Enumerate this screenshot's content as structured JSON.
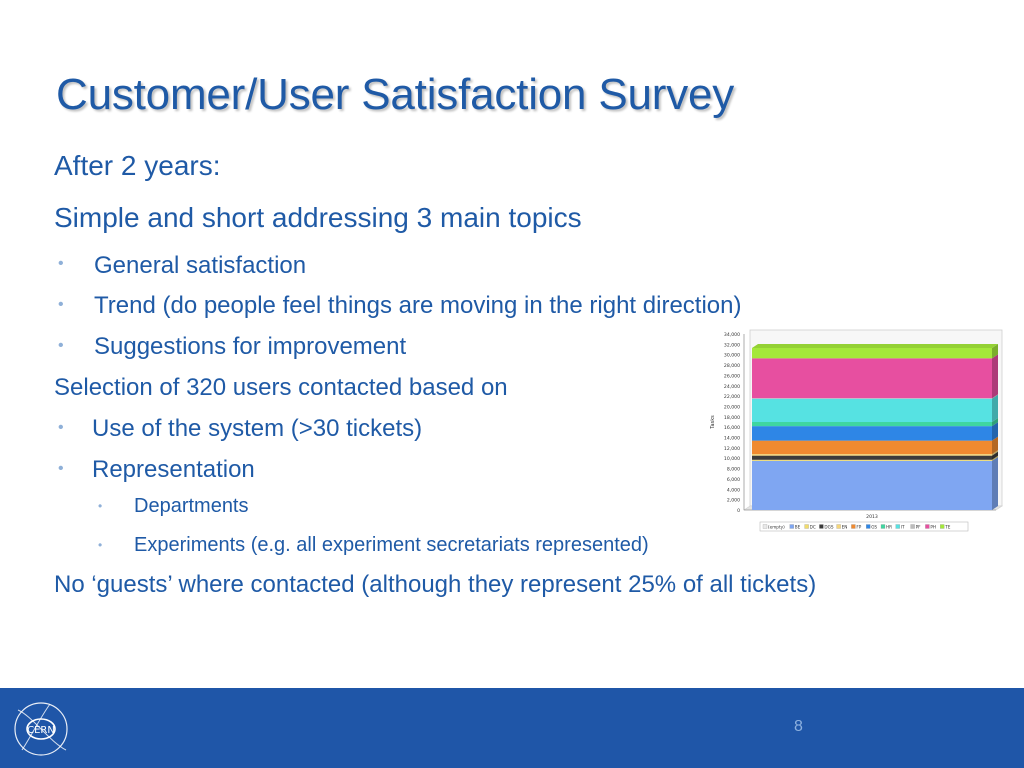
{
  "slide": {
    "title": "Customer/User Satisfaction Survey",
    "lines": [
      {
        "level": 1,
        "text": "After 2 years:"
      },
      {
        "level": 1,
        "text": "Simple and short addressing 3 main topics"
      },
      {
        "level": 2,
        "text": "General satisfaction"
      },
      {
        "level": 2,
        "text": "Trend (do people feel things are moving in the right direction)"
      },
      {
        "level": 2,
        "text": "Suggestions for improvement"
      },
      {
        "level": 1,
        "text": "Selection of 320 users contacted based on"
      },
      {
        "level": 2,
        "text": "Use of the system (>30 tickets)"
      },
      {
        "level": 2,
        "text": "Representation"
      },
      {
        "level": 3,
        "text": "Departments"
      },
      {
        "level": 3,
        "text": "Experiments (e.g. all experiment secretariats represented)"
      },
      {
        "level": 1,
        "text": "No ‘guests’ where contacted (although they represent 25% of all tickets)"
      }
    ],
    "bullet_glyph": "•",
    "page_number": "8",
    "logo_text": "CERN"
  },
  "colors": {
    "title": "#1f5aa6",
    "text": "#1f5aa6",
    "bullet": "#8fb0d8",
    "footer": "#1f56a8",
    "page_number": "#8db1df"
  },
  "chart_data": {
    "type": "bar",
    "stacked": true,
    "three_d": true,
    "categories": [
      "2013"
    ],
    "ylabel": "Tasks",
    "xlabel": "",
    "ylim": [
      0,
      34000
    ],
    "yticks": [
      0,
      2000,
      4000,
      6000,
      8000,
      10000,
      12000,
      14000,
      16000,
      18000,
      20000,
      22000,
      24000,
      26000,
      28000,
      30000,
      32000,
      34000
    ],
    "ytick_labels": [
      "0",
      "2,000",
      "4,000",
      "6,000",
      "8,000",
      "10,000",
      "12,000",
      "14,000",
      "16,000",
      "18,000",
      "20,000",
      "22,000",
      "24,000",
      "26,000",
      "28,000",
      "30,000",
      "32,000",
      "34,000"
    ],
    "grid": false,
    "legend_position": "bottom",
    "series": [
      {
        "name": "(empty)",
        "values": [
          0
        ],
        "color": "#e9e9e9"
      },
      {
        "name": "BE",
        "values": [
          9500
        ],
        "color": "#7fa6f2"
      },
      {
        "name": "DC",
        "values": [
          200
        ],
        "color": "#f2dc6b"
      },
      {
        "name": "DGS",
        "values": [
          800
        ],
        "color": "#3b3b3b"
      },
      {
        "name": "EN",
        "values": [
          300
        ],
        "color": "#f5d67a"
      },
      {
        "name": "FP",
        "values": [
          2600
        ],
        "color": "#f08a30"
      },
      {
        "name": "GS",
        "values": [
          2800
        ],
        "color": "#2e86e6"
      },
      {
        "name": "HR",
        "values": [
          800
        ],
        "color": "#3fd6a0"
      },
      {
        "name": "IT",
        "values": [
          4500
        ],
        "color": "#56e2e2"
      },
      {
        "name": "PF",
        "values": [
          100
        ],
        "color": "#bdbdbd"
      },
      {
        "name": "PH",
        "values": [
          7700
        ],
        "color": "#e74fa0"
      },
      {
        "name": "TE",
        "values": [
          2000
        ],
        "color": "#a4e83a"
      }
    ]
  }
}
